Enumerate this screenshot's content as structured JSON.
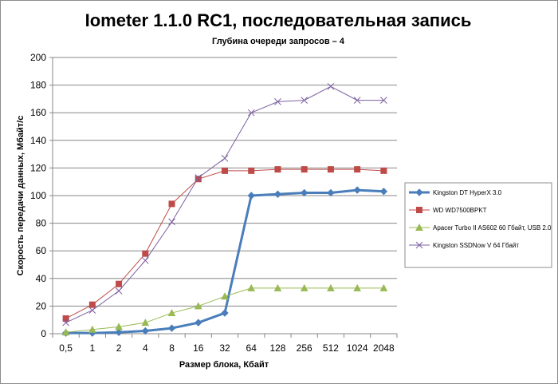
{
  "chart_data": {
    "type": "line",
    "title": "Iometer 1.1.0 RC1, последовательная запись",
    "subtitle": "Глубина очереди запросов – 4",
    "xlabel": "Размер блока, Кбайт",
    "ylabel": "Скорость передачи данных, Мбайт/с",
    "categories": [
      "0,5",
      "1",
      "2",
      "4",
      "8",
      "16",
      "32",
      "64",
      "128",
      "256",
      "512",
      "1024",
      "2048"
    ],
    "ylim": [
      0,
      200
    ],
    "yticks": [
      0,
      20,
      40,
      60,
      80,
      100,
      120,
      140,
      160,
      180,
      200
    ],
    "grid": "horizontal",
    "legend_position": "right",
    "series": [
      {
        "name": "Kingston DT HyperX 3.0",
        "color": "#4a7ebb",
        "marker": "diamond",
        "values": [
          0.5,
          0.5,
          1,
          2,
          4,
          8,
          15,
          100,
          101,
          102,
          102,
          104,
          103
        ]
      },
      {
        "name": "WD WD7500BPKT",
        "color": "#be4b48",
        "marker": "square",
        "values": [
          11,
          21,
          36,
          58,
          94,
          112,
          118,
          118,
          119,
          119,
          119,
          119,
          118
        ]
      },
      {
        "name": "Apacer Turbo II AS602 60 Гбайт, USB 2.0",
        "color": "#98b954",
        "marker": "triangle",
        "values": [
          1,
          3,
          5,
          8,
          15,
          20,
          27,
          33,
          33,
          33,
          33,
          33,
          33
        ]
      },
      {
        "name": "Kingston SSDNow V 64 Гбайт",
        "color": "#7d60a0",
        "marker": "x",
        "values": [
          8,
          17,
          31,
          53,
          81,
          113,
          127,
          160,
          168,
          169,
          179,
          169,
          169
        ]
      }
    ]
  }
}
